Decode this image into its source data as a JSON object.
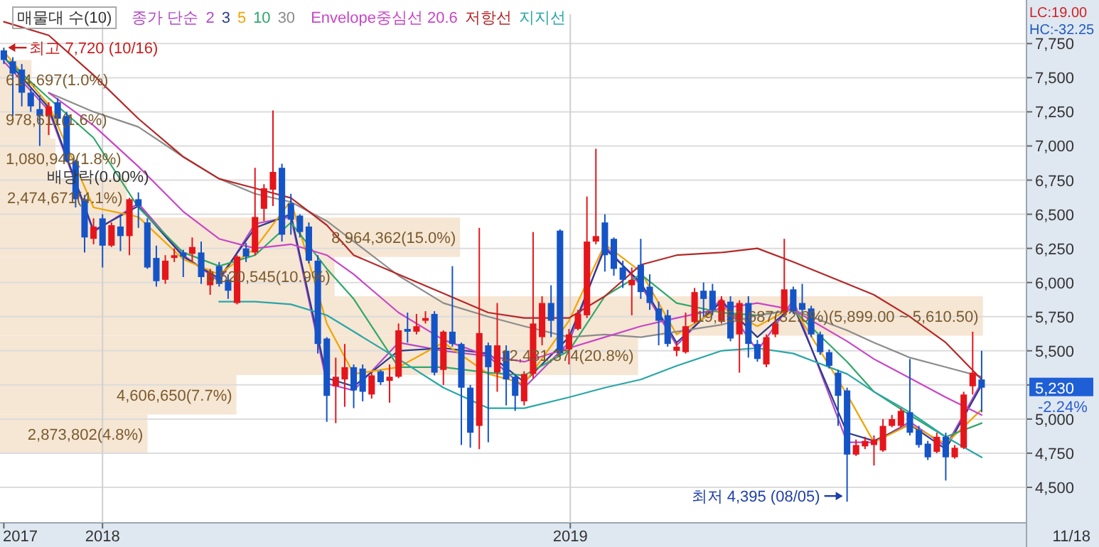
{
  "chart_data": [
    {
      "type": "candlestick",
      "legend_title": "종가 단순",
      "legend": "top left",
      "grid": true,
      "x": [
        "2017-10-16",
        "2017-10-23",
        "2017-10-30",
        "2017-11-06",
        "2017-11-13",
        "2017-11-20",
        "2017-11-27",
        "2017-12-04",
        "2017-12-11",
        "2017-12-18",
        "2017-12-25",
        "2018-01-01",
        "2018-01-08",
        "2018-01-15",
        "2018-01-22",
        "2018-01-29",
        "2018-02-05",
        "2018-02-12",
        "2018-02-19",
        "2018-02-26",
        "2018-03-05",
        "2018-03-12",
        "2018-03-19",
        "2018-03-26",
        "2018-04-02",
        "2018-04-09",
        "2018-04-16",
        "2018-04-23",
        "2018-04-30",
        "2018-05-07",
        "2018-05-14",
        "2018-05-21",
        "2018-05-28",
        "2018-06-04",
        "2018-06-11",
        "2018-06-18",
        "2018-06-25",
        "2018-07-02",
        "2018-07-09",
        "2018-07-16",
        "2018-07-23",
        "2018-07-30",
        "2018-08-06",
        "2018-08-13",
        "2018-08-20",
        "2018-08-27",
        "2018-09-03",
        "2018-09-10",
        "2018-09-17",
        "2018-09-24",
        "2018-10-01",
        "2018-10-08",
        "2018-10-15",
        "2018-10-22",
        "2018-10-29",
        "2018-11-05",
        "2018-11-12",
        "2018-11-19",
        "2018-11-26",
        "2018-12-03",
        "2018-12-10",
        "2018-12-17",
        "2018-12-24",
        "2018-12-31",
        "2019-01-07",
        "2019-01-14",
        "2019-01-21",
        "2019-01-28",
        "2019-02-04",
        "2019-02-11",
        "2019-02-18",
        "2019-02-25",
        "2019-03-04",
        "2019-03-11",
        "2019-03-18",
        "2019-03-25",
        "2019-04-01",
        "2019-04-08",
        "2019-04-15",
        "2019-04-22",
        "2019-04-29",
        "2019-05-06",
        "2019-05-13",
        "2019-05-20",
        "2019-05-27",
        "2019-06-03",
        "2019-06-10",
        "2019-06-17",
        "2019-06-24",
        "2019-07-01",
        "2019-07-08",
        "2019-07-15",
        "2019-07-22",
        "2019-07-29",
        "2019-08-05",
        "2019-08-12",
        "2019-08-19",
        "2019-08-26",
        "2019-09-02",
        "2019-09-09",
        "2019-09-16",
        "2019-09-23",
        "2019-09-30",
        "2019-10-07",
        "2019-10-14",
        "2019-10-21",
        "2019-10-28",
        "2019-11-04",
        "2019-11-11",
        "2019-11-18"
      ],
      "ohlc": [
        [
          7700,
          7720,
          7600,
          7630
        ],
        [
          7620,
          7650,
          7220,
          7530
        ],
        [
          7560,
          7600,
          7290,
          7390
        ],
        [
          7390,
          7420,
          7250,
          7290
        ],
        [
          7270,
          7370,
          7000,
          7220
        ],
        [
          7220,
          7320,
          7080,
          7290
        ],
        [
          7320,
          7350,
          7150,
          7200
        ],
        [
          7220,
          7250,
          6880,
          6890
        ],
        [
          6890,
          6900,
          6550,
          6610
        ],
        [
          6610,
          6640,
          6220,
          6330
        ],
        [
          6320,
          6470,
          6280,
          6410
        ],
        [
          6470,
          6500,
          6110,
          6270
        ],
        [
          6270,
          6440,
          6260,
          6420
        ],
        [
          6410,
          6500,
          6230,
          6340
        ],
        [
          6340,
          6620,
          6200,
          6610
        ],
        [
          6610,
          6660,
          6400,
          6560
        ],
        [
          6440,
          6470,
          6100,
          6110
        ],
        [
          6180,
          6270,
          5970,
          6010
        ],
        [
          6020,
          6200,
          5990,
          6160
        ],
        [
          6180,
          6250,
          6150,
          6200
        ],
        [
          6220,
          6240,
          6040,
          6190
        ],
        [
          6210,
          6330,
          6150,
          6260
        ],
        [
          6220,
          6300,
          5990,
          6040
        ],
        [
          5980,
          6100,
          5910,
          6070
        ],
        [
          6120,
          6150,
          5970,
          5990
        ],
        [
          6020,
          6060,
          5880,
          5940
        ],
        [
          5850,
          6200,
          5840,
          6190
        ],
        [
          6250,
          6290,
          6150,
          6190
        ],
        [
          6220,
          6840,
          6200,
          6480
        ],
        [
          6540,
          6720,
          6450,
          6690
        ],
        [
          6680,
          7260,
          6560,
          6810
        ],
        [
          6840,
          6870,
          6300,
          6350
        ],
        [
          6580,
          6650,
          6350,
          6460
        ],
        [
          6490,
          6500,
          6330,
          6370
        ],
        [
          6410,
          6440,
          6140,
          6160
        ],
        [
          6160,
          6200,
          5480,
          5550
        ],
        [
          5590,
          5600,
          4980,
          5170
        ],
        [
          5240,
          5450,
          4970,
          5310
        ],
        [
          5290,
          5550,
          5090,
          5380
        ],
        [
          5380,
          5400,
          5080,
          5210
        ],
        [
          5370,
          5400,
          5130,
          5200
        ],
        [
          5180,
          5340,
          5150,
          5320
        ],
        [
          5350,
          5360,
          5250,
          5270
        ],
        [
          5280,
          5400,
          5120,
          5310
        ],
        [
          5310,
          5700,
          5300,
          5650
        ],
        [
          5660,
          5780,
          5560,
          5640
        ],
        [
          5640,
          5770,
          5620,
          5680
        ],
        [
          5720,
          5790,
          5700,
          5740
        ],
        [
          5770,
          5790,
          5320,
          5340
        ],
        [
          5360,
          5650,
          5250,
          5640
        ],
        [
          5640,
          6120,
          5530,
          5550
        ],
        [
          5550,
          5560,
          4810,
          5230
        ],
        [
          5230,
          5250,
          4790,
          4900
        ],
        [
          4950,
          6400,
          4780,
          5630
        ],
        [
          5540,
          5560,
          4830,
          5380
        ],
        [
          5340,
          5850,
          5200,
          5540
        ],
        [
          5500,
          5540,
          5100,
          5290
        ],
        [
          5310,
          5330,
          5060,
          5170
        ],
        [
          5130,
          5350,
          5100,
          5330
        ],
        [
          5330,
          6370,
          5300,
          5700
        ],
        [
          5600,
          5900,
          5540,
          5850
        ],
        [
          5850,
          5980,
          5600,
          5720
        ],
        [
          6380,
          6390,
          5460,
          5480
        ],
        [
          5510,
          5660,
          5400,
          5620
        ],
        [
          5660,
          5800,
          5650,
          5770
        ],
        [
          5760,
          6630,
          5740,
          6300
        ],
        [
          6300,
          6980,
          6280,
          6340
        ],
        [
          6440,
          6500,
          6080,
          6200
        ],
        [
          6320,
          6330,
          6050,
          6100
        ],
        [
          6110,
          6160,
          5960,
          6020
        ],
        [
          5980,
          6110,
          5760,
          6020
        ],
        [
          6130,
          6320,
          5880,
          5930
        ],
        [
          5970,
          6060,
          5800,
          5850
        ],
        [
          5810,
          5860,
          5540,
          5720
        ],
        [
          5760,
          5800,
          5530,
          5550
        ],
        [
          5500,
          5560,
          5460,
          5530
        ],
        [
          5490,
          5780,
          5480,
          5680
        ],
        [
          5710,
          5960,
          5700,
          5930
        ],
        [
          5940,
          6000,
          5750,
          5880
        ],
        [
          5940,
          5990,
          5760,
          5800
        ],
        [
          5720,
          5900,
          5700,
          5870
        ],
        [
          5860,
          5900,
          5570,
          5590
        ],
        [
          5620,
          5870,
          5340,
          5850
        ],
        [
          5850,
          5900,
          5450,
          5550
        ],
        [
          5550,
          5580,
          5420,
          5440
        ],
        [
          5400,
          5620,
          5380,
          5600
        ],
        [
          5620,
          5750,
          5600,
          5700
        ],
        [
          5780,
          6320,
          5760,
          5950
        ],
        [
          5950,
          5970,
          5770,
          5790
        ],
        [
          5850,
          5990,
          5780,
          5800
        ],
        [
          5810,
          5830,
          5600,
          5620
        ],
        [
          5620,
          5640,
          5470,
          5490
        ],
        [
          5490,
          5510,
          5370,
          5390
        ],
        [
          5340,
          5360,
          4950,
          5170
        ],
        [
          5210,
          5230,
          4395,
          4740
        ],
        [
          4740,
          4850,
          4730,
          4810
        ],
        [
          4800,
          4870,
          4780,
          4840
        ],
        [
          4810,
          4880,
          4660,
          4850
        ],
        [
          4770,
          5000,
          4760,
          4950
        ],
        [
          4950,
          5030,
          4940,
          5000
        ],
        [
          4950,
          5080,
          4940,
          5060
        ],
        [
          5050,
          5440,
          4880,
          4900
        ],
        [
          4920,
          4950,
          4790,
          4810
        ],
        [
          4820,
          4840,
          4700,
          4720
        ],
        [
          4760,
          4900,
          4750,
          4870
        ],
        [
          4870,
          4900,
          4550,
          4720
        ],
        [
          4720,
          4810,
          4710,
          4790
        ],
        [
          4790,
          5200,
          4780,
          5180
        ],
        [
          5240,
          5640,
          5180,
          5340
        ],
        [
          5290,
          5500,
          5050,
          5230
        ]
      ],
      "series": [
        {
          "name": "2",
          "type": "line",
          "color": "#b04ac8",
          "x": [
            "2017-10-16",
            "2017-11-20",
            "2017-12-25",
            "2018-01-29",
            "2018-03-05",
            "2018-04-02",
            "2018-04-30",
            "2018-05-28",
            "2018-06-25",
            "2018-07-16",
            "2018-08-20",
            "2018-09-24",
            "2018-10-29",
            "2018-11-26",
            "2018-12-31",
            "2019-01-28",
            "2019-02-25",
            "2019-03-25",
            "2019-04-29",
            "2019-05-27",
            "2019-06-24",
            "2019-08-05",
            "2019-08-26",
            "2019-09-23",
            "2019-10-21",
            "2019-11-18"
          ],
          "values": [
            7620,
            7260,
            6370,
            6580,
            6200,
            6010,
            6430,
            6480,
            5260,
            5210,
            5560,
            5500,
            5460,
            5230,
            5560,
            6270,
            5980,
            5540,
            5880,
            5500,
            5870,
            4830,
            4830,
            4980,
            4800,
            5270
          ]
        },
        {
          "name": "3",
          "type": "line",
          "color": "#2b3a8c",
          "x": [
            "2017-10-16",
            "2017-11-20",
            "2017-12-25",
            "2018-01-29",
            "2018-03-05",
            "2018-04-02",
            "2018-04-30",
            "2018-05-28",
            "2018-06-25",
            "2018-07-16",
            "2018-08-20",
            "2018-09-24",
            "2018-10-29",
            "2018-11-26",
            "2018-12-31",
            "2019-01-28",
            "2019-02-25",
            "2019-03-25",
            "2019-04-29",
            "2019-05-27",
            "2019-06-24",
            "2019-08-05",
            "2019-08-26",
            "2019-09-23",
            "2019-10-21",
            "2019-11-18"
          ],
          "values": [
            7650,
            7280,
            6380,
            6560,
            6190,
            6030,
            6400,
            6500,
            5300,
            5240,
            5500,
            5520,
            5480,
            5270,
            5600,
            6250,
            6000,
            5560,
            5860,
            5600,
            5830,
            4900,
            4840,
            4960,
            4780,
            5250
          ]
        },
        {
          "name": "5",
          "type": "line",
          "color": "#f0a400",
          "x": [
            "2017-10-16",
            "2017-11-20",
            "2017-12-25",
            "2018-01-29",
            "2018-03-05",
            "2018-04-02",
            "2018-04-30",
            "2018-05-28",
            "2018-06-25",
            "2018-07-16",
            "2018-08-20",
            "2018-09-24",
            "2018-10-29",
            "2018-11-26",
            "2018-12-31",
            "2019-01-28",
            "2019-02-25",
            "2019-03-25",
            "2019-04-29",
            "2019-05-27",
            "2019-06-24",
            "2019-08-05",
            "2019-08-26",
            "2019-09-23",
            "2019-10-21",
            "2019-11-18"
          ],
          "values": [
            7690,
            7300,
            6550,
            6480,
            6170,
            6060,
            6250,
            6600,
            5700,
            5330,
            5380,
            5560,
            5330,
            5260,
            5720,
            6280,
            6080,
            5620,
            5820,
            5680,
            5820,
            5180,
            4830,
            4960,
            4820,
            5070
          ]
        },
        {
          "name": "10",
          "type": "line",
          "color": "#2fa86a",
          "x": [
            "2017-10-16",
            "2017-11-20",
            "2017-12-25",
            "2018-01-29",
            "2018-03-05",
            "2018-04-02",
            "2018-04-30",
            "2018-05-28",
            "2018-06-25",
            "2018-07-16",
            "2018-08-20",
            "2018-09-24",
            "2018-10-29",
            "2018-11-26",
            "2018-12-31",
            "2019-01-28",
            "2019-02-25",
            "2019-03-25",
            "2019-04-29",
            "2019-05-27",
            "2019-06-24",
            "2019-08-05",
            "2019-08-26",
            "2019-09-23",
            "2019-10-21",
            "2019-11-18"
          ],
          "values": [
            7650,
            7350,
            7060,
            6550,
            6220,
            6120,
            6200,
            6440,
            6100,
            5880,
            5380,
            5380,
            5340,
            5320,
            5500,
            5900,
            6060,
            5850,
            5780,
            5760,
            5800,
            5420,
            5200,
            5030,
            4870,
            4970
          ]
        },
        {
          "name": "30",
          "type": "line",
          "color": "#8c8c8c",
          "x": [
            "2017-11-20",
            "2017-12-25",
            "2018-01-29",
            "2018-03-05",
            "2018-04-02",
            "2018-04-30",
            "2018-05-28",
            "2018-06-25",
            "2018-07-16",
            "2018-08-20",
            "2018-09-24",
            "2018-10-29",
            "2018-11-26",
            "2018-12-31",
            "2019-01-28",
            "2019-02-25",
            "2019-03-25",
            "2019-04-29",
            "2019-05-27",
            "2019-06-24",
            "2019-08-05",
            "2019-08-26",
            "2019-09-23",
            "2019-10-21",
            "2019-11-18"
          ],
          "values": [
            7390,
            7250,
            7140,
            6920,
            6760,
            6650,
            6590,
            6450,
            6300,
            6050,
            5850,
            5750,
            5680,
            5600,
            5620,
            5600,
            5640,
            5690,
            5760,
            5800,
            5650,
            5560,
            5450,
            5380,
            5310
          ]
        },
        {
          "name": "Envelope중심선 20.6",
          "type": "line",
          "color": "#c846c8",
          "x": [
            "2017-11-20",
            "2017-12-25",
            "2018-01-29",
            "2018-03-05",
            "2018-04-02",
            "2018-04-30",
            "2018-05-28",
            "2018-06-25",
            "2018-07-16",
            "2018-08-20",
            "2018-09-24",
            "2018-10-29",
            "2018-11-26",
            "2018-12-31",
            "2019-01-28",
            "2019-02-25",
            "2019-03-25",
            "2019-04-29",
            "2019-05-27",
            "2019-06-24",
            "2019-08-05",
            "2019-08-26",
            "2019-09-23",
            "2019-10-21",
            "2019-11-18"
          ],
          "values": [
            7390,
            7150,
            6850,
            6520,
            6320,
            6250,
            6280,
            6200,
            6060,
            5780,
            5580,
            5460,
            5420,
            5520,
            5600,
            5680,
            5740,
            5810,
            5850,
            5800,
            5570,
            5440,
            5300,
            5160,
            5030
          ]
        },
        {
          "name": "저항선",
          "type": "line",
          "color": "#b52828",
          "x": [
            "2017-10-16",
            "2017-11-20",
            "2017-12-25",
            "2018-01-29",
            "2018-03-05",
            "2018-04-02",
            "2018-04-30",
            "2018-05-28",
            "2018-06-25",
            "2018-07-16",
            "2018-08-20",
            "2018-09-24",
            "2018-10-29",
            "2018-11-26",
            "2018-12-31",
            "2019-01-28",
            "2019-02-25",
            "2019-03-25",
            "2019-04-29",
            "2019-05-27",
            "2019-06-24",
            "2019-08-05",
            "2019-08-26",
            "2019-09-23",
            "2019-10-21",
            "2019-11-18"
          ],
          "values": [
            7910,
            7810,
            7520,
            7200,
            6920,
            6760,
            6690,
            6620,
            6420,
            6200,
            6060,
            5920,
            5780,
            5740,
            5740,
            5900,
            6130,
            6200,
            6220,
            6250,
            6150,
            5990,
            5910,
            5750,
            5560,
            5290
          ]
        },
        {
          "name": "지지선",
          "type": "line",
          "color": "#2aa6a6",
          "x": [
            "2018-04-02",
            "2018-04-30",
            "2018-05-28",
            "2018-06-25",
            "2018-07-16",
            "2018-08-20",
            "2018-09-24",
            "2018-10-29",
            "2018-11-26",
            "2018-12-31",
            "2019-01-28",
            "2019-02-25",
            "2019-03-25",
            "2019-04-29",
            "2019-05-27",
            "2019-06-24",
            "2019-08-05",
            "2019-08-26",
            "2019-09-23",
            "2019-10-21",
            "2019-11-18"
          ],
          "values": [
            5860,
            5860,
            5840,
            5760,
            5640,
            5440,
            5230,
            5080,
            5080,
            5160,
            5230,
            5290,
            5390,
            5500,
            5520,
            5480,
            5330,
            5200,
            5050,
            4870,
            4720
          ]
        }
      ],
      "xlim": [
        "2017-10-13",
        "2019-12-23"
      ],
      "xticks": [
        {
          "value": "2017-10-16",
          "label": "2017"
        },
        {
          "value": "2018-01-01",
          "label": "2018"
        },
        {
          "value": "2019-01-01",
          "label": "2019"
        }
      ],
      "ylim": [
        4240,
        7965
      ],
      "yticks": [
        {
          "value": 4500,
          "label": "4,500"
        },
        {
          "value": 4750,
          "label": "4,750"
        },
        {
          "value": 5000,
          "label": "5,000"
        },
        {
          "value": 5250,
          "label": null
        },
        {
          "value": 5500,
          "label": "5,500"
        },
        {
          "value": 5750,
          "label": "5,750"
        },
        {
          "value": 6000,
          "label": "6,000"
        },
        {
          "value": 6250,
          "label": "6,250"
        },
        {
          "value": 6500,
          "label": "6,500"
        },
        {
          "value": 6750,
          "label": "6,750"
        },
        {
          "value": 7000,
          "label": "7,000"
        },
        {
          "value": 7250,
          "label": "7,250"
        },
        {
          "value": 7500,
          "label": "7,500"
        },
        {
          "value": 7750,
          "label": "7,750"
        }
      ],
      "annotations": [
        {
          "text": "최고 7,720 (10/16)",
          "x": "2017-10-16",
          "y": 7720
        },
        "최저 4,395 (08/05)",
        "배당락(0.00%)",
        "LC:19.00",
        "HC:-32.25",
        "5,230",
        "-2.24%",
        "11/18"
      ]
    },
    {
      "type": "bar",
      "orientation": "horizontal",
      "title": "매물대 수(10)",
      "color": "#f6e6d4",
      "categories": [
        null,
        null,
        null,
        null,
        null,
        null,
        null,
        null,
        null,
        null
      ],
      "values": [
        614697,
        978611,
        1080949,
        2474671,
        8964362,
        6520545,
        19150687,
        12431374,
        4606650,
        2873802
      ],
      "value_labels": [
        "614,697(1.0%)",
        "978,611(1.6%)",
        "1,080,949(1.8%)",
        "2,474,671(4.1%)",
        "8,964,362(15.0%)",
        "6,520,545(10.9%)",
        "19,150,687(32.0%)(5,899.00 ~ 5,610.50)",
        "12,431,374(20.8%)",
        "4,606,650(7.7%)",
        "2,873,802(4.8%)"
      ],
      "xlim": [
        0,
        20000000
      ]
    }
  ]
}
